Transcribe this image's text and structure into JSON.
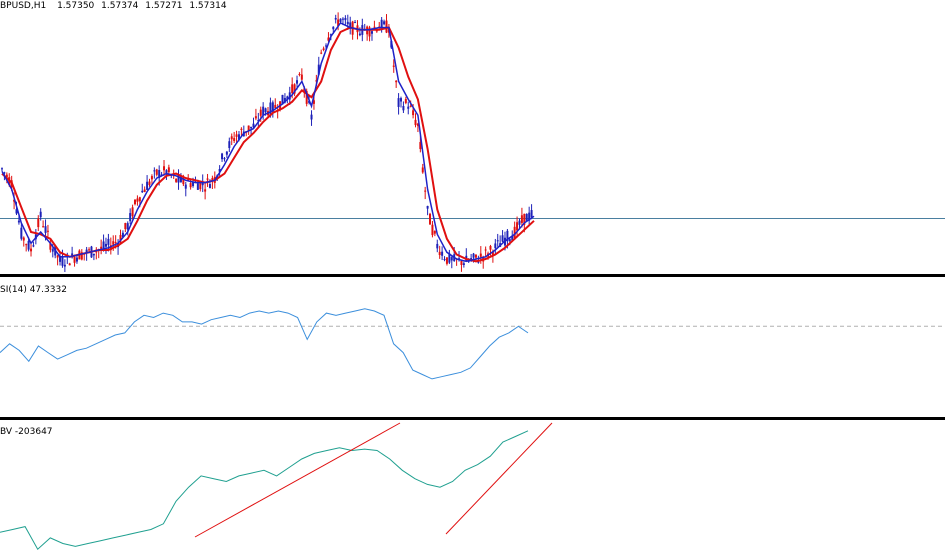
{
  "header": {
    "symbol_label": "BPUSD,H1",
    "open": "1.57350",
    "high": "1.57374",
    "low": "1.57271",
    "close": "1.57314"
  },
  "rsi_pane": {
    "label": "SI(14) 47.3332",
    "level": 50
  },
  "obv_pane": {
    "label": "BV -203647"
  },
  "colors": {
    "background": "#ffffff",
    "bull_candle": "#1e22b8",
    "bear_candle": "#e01010",
    "fast_ma": "#1e22c8",
    "slow_ma": "#e01010",
    "price_line": "#4a7fa0",
    "rsi_line": "#3c8fdc",
    "obv_line": "#20a090",
    "trendline": "#e01010",
    "separator": "#000000",
    "level_line": "#b0b0b0"
  },
  "chart_data": [
    {
      "type": "line",
      "title": "BPUSD,H1",
      "series": [
        {
          "values": [
            1.571,
            1.565,
            1.542,
            1.535,
            1.55,
            1.538,
            1.53,
            1.531,
            1.533,
            1.534,
            1.535,
            1.537,
            1.539,
            1.546,
            1.558,
            1.564,
            1.569,
            1.57,
            1.566,
            1.565,
            1.565,
            1.564,
            1.567,
            1.578,
            1.585,
            1.588,
            1.59,
            1.597,
            1.598,
            1.601,
            1.606,
            1.612,
            1.594,
            1.623,
            1.633,
            1.638,
            1.634,
            1.633,
            1.633,
            1.635,
            1.634,
            1.6,
            1.6,
            1.59,
            1.552,
            1.537,
            1.531,
            1.53,
            1.53,
            1.531,
            1.533,
            1.536,
            1.54,
            1.543,
            1.549,
            1.551
          ]
        },
        {
          "values": [
            1.57,
            1.562,
            1.547,
            1.538,
            1.543,
            1.538,
            1.532,
            1.532,
            1.533,
            1.534,
            1.535,
            1.536,
            1.538,
            1.543,
            1.553,
            1.561,
            1.567,
            1.569,
            1.568,
            1.566,
            1.565,
            1.565,
            1.566,
            1.573,
            1.581,
            1.587,
            1.589,
            1.595,
            1.597,
            1.6,
            1.604,
            1.61,
            1.599,
            1.618,
            1.63,
            1.636,
            1.634,
            1.633,
            1.633,
            1.634,
            1.634,
            1.61,
            1.602,
            1.595,
            1.562,
            1.542,
            1.534,
            1.531,
            1.53,
            1.531,
            1.532,
            1.535,
            1.539,
            1.542,
            1.547,
            1.55
          ]
        },
        {
          "values": [
            1.569,
            1.565,
            1.554,
            1.543,
            1.542,
            1.54,
            1.534,
            1.532,
            1.533,
            1.534,
            1.535,
            1.535,
            1.537,
            1.54,
            1.548,
            1.557,
            1.564,
            1.568,
            1.569,
            1.567,
            1.566,
            1.565,
            1.566,
            1.569,
            1.576,
            1.583,
            1.587,
            1.592,
            1.596,
            1.598,
            1.601,
            1.606,
            1.603,
            1.61,
            1.624,
            1.632,
            1.634,
            1.633,
            1.633,
            1.633,
            1.634,
            1.625,
            1.612,
            1.602,
            1.58,
            1.553,
            1.54,
            1.533,
            1.531,
            1.53,
            1.531,
            1.533,
            1.536,
            1.54,
            1.544,
            1.548
          ]
        }
      ],
      "current_price": 1.549,
      "y_range": [
        1.527,
        1.64
      ]
    },
    {
      "type": "line",
      "title": "SI(14) 47.3332",
      "series": [
        {
          "values": [
            38,
            42,
            39,
            34,
            41,
            38,
            35,
            37,
            39,
            40,
            42,
            44,
            46,
            47,
            52,
            55,
            54,
            56,
            55,
            52,
            52,
            51,
            53,
            54,
            55,
            54,
            56,
            57,
            56,
            57,
            56,
            54,
            44,
            52,
            56,
            55,
            56,
            57,
            58,
            57,
            55,
            42,
            38,
            30,
            28,
            26,
            27,
            28,
            29,
            31,
            36,
            41,
            45,
            47,
            50,
            47
          ]
        }
      ],
      "ylim": [
        20,
        62
      ],
      "level": 50
    },
    {
      "type": "line",
      "title": "BV -203647",
      "series": [
        {
          "values": [
            -260,
            -250,
            -240,
            -320,
            -280,
            -300,
            -310,
            -300,
            -290,
            -280,
            -270,
            -260,
            -250,
            -230,
            -150,
            -100,
            -60,
            -70,
            -80,
            -60,
            -50,
            -40,
            -60,
            -30,
            0,
            20,
            30,
            40,
            30,
            35,
            30,
            0,
            -40,
            -70,
            -90,
            -100,
            -80,
            -40,
            -20,
            10,
            60,
            80,
            100
          ]
        }
      ],
      "ylim": [
        -330,
        110
      ]
    }
  ]
}
